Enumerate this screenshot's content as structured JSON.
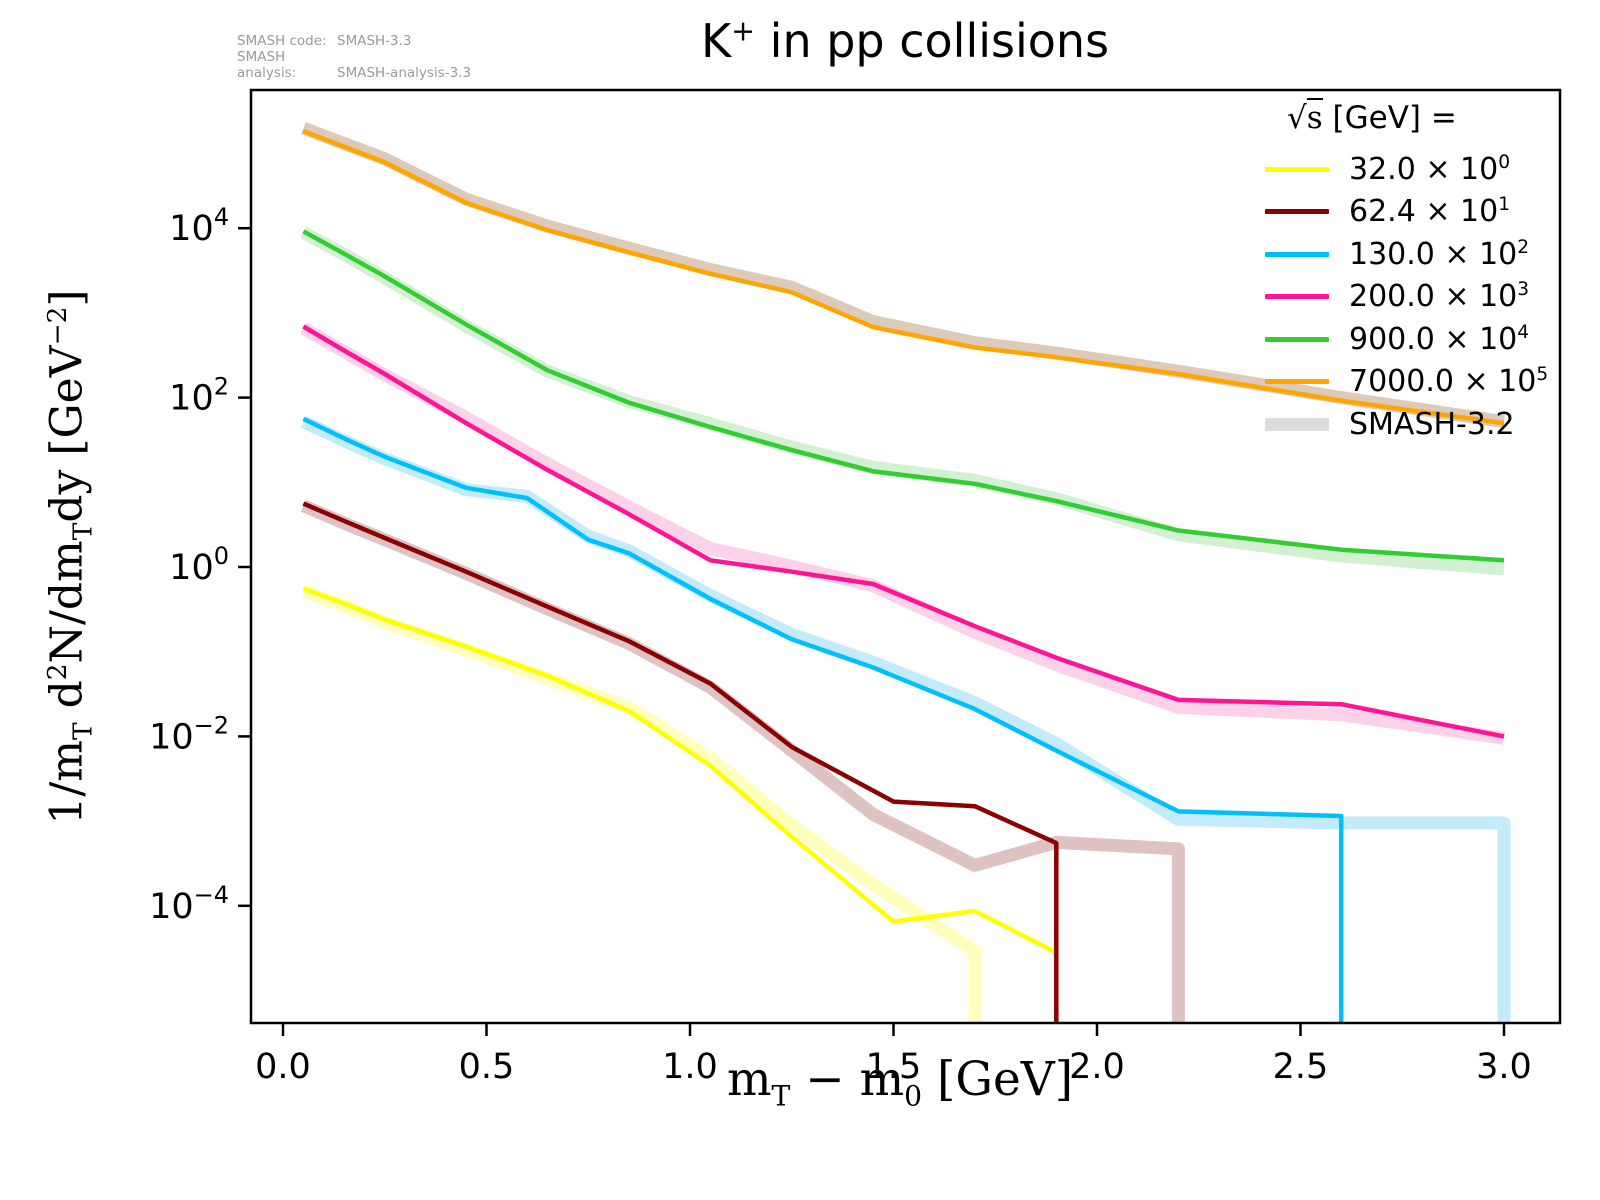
{
  "title": {
    "particle": "K",
    "charge": "+",
    "rest": " in pp collisions"
  },
  "corner": {
    "lines": [
      {
        "label": "SMASH code:",
        "value": "SMASH-3.3"
      },
      {
        "label": "SMASH analysis:",
        "value": "SMASH-analysis-3.3"
      }
    ]
  },
  "axes": {
    "x_label_parts": {
      "p1": "m",
      "s1": "T",
      "p2": " − m",
      "s2": "0",
      "p3": " [GeV]"
    },
    "y_label_parts": {
      "p1": "1/m",
      "s1": "T",
      "p2": " d",
      "sup1": "2",
      "p3": "N/dm",
      "s2": "T",
      "p4": "dy  [GeV",
      "sup2": "−2",
      "p5": "]"
    },
    "x_ticks": [
      {
        "v": 0.0,
        "label": "0.0"
      },
      {
        "v": 0.5,
        "label": "0.5"
      },
      {
        "v": 1.0,
        "label": "1.0"
      },
      {
        "v": 1.5,
        "label": "1.5"
      },
      {
        "v": 2.0,
        "label": "2.0"
      },
      {
        "v": 2.5,
        "label": "2.5"
      },
      {
        "v": 3.0,
        "label": "3.0"
      }
    ],
    "y_ticks": [
      {
        "exp": "4"
      },
      {
        "exp": "2"
      },
      {
        "exp": "0"
      },
      {
        "exp": "−2"
      },
      {
        "exp": "−4"
      }
    ],
    "y_tick_base": "10"
  },
  "legend": {
    "title_sqrt": "√",
    "title_s": "s",
    "title_rest": "  [GeV] =",
    "items": [
      {
        "value": "32.0",
        "exp": "0",
        "color": "#ffff00",
        "thick": false
      },
      {
        "value": "62.4",
        "exp": "1",
        "color": "#8b0000",
        "thick": false
      },
      {
        "value": "130.0",
        "exp": "2",
        "color": "#00bfff",
        "thick": false
      },
      {
        "value": "200.0",
        "exp": "3",
        "color": "#ff1493",
        "thick": false
      },
      {
        "value": "900.0",
        "exp": "4",
        "color": "#32cd32",
        "thick": false
      },
      {
        "value": "7000.0",
        "exp": "5",
        "color": "#ffa500",
        "thick": false
      },
      {
        "label": "SMASH-3.2",
        "color": "#dcdcdc",
        "thick": true
      }
    ]
  },
  "chart_data": {
    "type": "line",
    "title": "K+ in pp collisions",
    "xlabel": "mT − m0 [GeV]",
    "ylabel": "1/mT d2N/dmTdy [GeV−2]",
    "x_range": [
      -0.08,
      3.14
    ],
    "log_y": true,
    "y_tick_exponents": [
      4,
      2,
      0,
      -2,
      -4
    ],
    "legend_position": "upper right",
    "grid": false,
    "note": "Each sqrt(s) curve is scaled by the 10^exp factor shown in the legend. 'band' arrays are the thick pale SMASH-3.2 reference curves, 'line' arrays are the vivid SMASH-3.3 curves. drop=true means the curve falls vertically to zero at its last x.",
    "series": [
      {
        "sqrt_s_gev": 32.0,
        "scale_exp": 0,
        "color": "#ffff00",
        "band_color": "#ffffbe",
        "line": {
          "x": [
            0.05,
            0.15,
            0.25,
            0.45,
            0.65,
            0.85,
            1.05,
            1.25,
            1.5,
            1.7,
            1.9
          ],
          "y": [
            0.56,
            0.37,
            0.24,
            0.115,
            0.052,
            0.02,
            0.0045,
            0.00065,
            6.5e-05,
            8.7e-05,
            2.8e-05
          ],
          "drop": false
        },
        "band": {
          "x": [
            0.05,
            0.15,
            0.25,
            0.45,
            0.65,
            0.85,
            1.05,
            1.25,
            1.45,
            1.7
          ],
          "y": [
            0.52,
            0.35,
            0.22,
            0.105,
            0.048,
            0.022,
            0.0055,
            0.0009,
            0.00018,
            2.9e-05
          ],
          "drop": true
        }
      },
      {
        "sqrt_s_gev": 62.4,
        "scale_exp": 1,
        "color": "#8b0000",
        "band_color": "#dfc3c3",
        "line": {
          "x": [
            0.05,
            0.15,
            0.25,
            0.45,
            0.65,
            0.85,
            1.05,
            1.25,
            1.5,
            1.7,
            1.9
          ],
          "y": [
            5.6,
            3.5,
            2.2,
            0.88,
            0.34,
            0.133,
            0.042,
            0.0075,
            0.0017,
            0.0015,
            0.00055
          ],
          "drop": true
        },
        "band": {
          "x": [
            0.05,
            0.15,
            0.25,
            0.45,
            0.65,
            0.85,
            1.05,
            1.25,
            1.45,
            1.7,
            1.9,
            2.2
          ],
          "y": [
            5.3,
            3.3,
            2.1,
            0.84,
            0.32,
            0.125,
            0.038,
            0.0068,
            0.0012,
            0.0003,
            0.00056,
            0.00047
          ],
          "drop": true
        }
      },
      {
        "sqrt_s_gev": 130.0,
        "scale_exp": 2,
        "color": "#00bfff",
        "band_color": "#c4ebfc",
        "line": {
          "x": [
            0.05,
            0.15,
            0.25,
            0.45,
            0.6,
            0.75,
            0.85,
            1.05,
            1.25,
            1.45,
            1.7,
            1.9,
            2.2,
            2.6
          ],
          "y": [
            56,
            33,
            20,
            8.6,
            6.5,
            2.1,
            1.45,
            0.42,
            0.14,
            0.065,
            0.021,
            0.0068,
            0.0013,
            0.00115
          ],
          "drop": true
        },
        "band": {
          "x": [
            0.05,
            0.15,
            0.25,
            0.45,
            0.6,
            0.75,
            0.85,
            1.05,
            1.25,
            1.45,
            1.7,
            1.9,
            2.2,
            2.6,
            3.0
          ],
          "y": [
            52,
            31,
            19,
            8.2,
            6.8,
            2.3,
            1.55,
            0.46,
            0.16,
            0.075,
            0.025,
            0.0082,
            0.00105,
            0.00095,
            0.00095
          ],
          "drop": true
        }
      },
      {
        "sqrt_s_gev": 200.0,
        "scale_exp": 3,
        "color": "#ff1493",
        "band_color": "#fcd2e8",
        "line": {
          "x": [
            0.05,
            0.15,
            0.25,
            0.45,
            0.65,
            0.85,
            1.05,
            1.25,
            1.45,
            1.7,
            1.9,
            2.2,
            2.6,
            3.0
          ],
          "y": [
            690,
            360,
            190,
            50,
            14,
            4.2,
            1.2,
            0.88,
            0.63,
            0.2,
            0.085,
            0.027,
            0.024,
            0.01
          ],
          "drop": false
        },
        "band": {
          "x": [
            0.05,
            0.15,
            0.25,
            0.45,
            0.65,
            0.85,
            1.05,
            1.25,
            1.45,
            1.7,
            1.9,
            2.2,
            2.6,
            3.0
          ],
          "y": [
            660,
            350,
            185,
            58,
            16.5,
            5.1,
            1.65,
            1.02,
            0.6,
            0.17,
            0.07,
            0.022,
            0.018,
            0.0095
          ],
          "drop": false
        }
      },
      {
        "sqrt_s_gev": 900.0,
        "scale_exp": 4,
        "color": "#32cd32",
        "band_color": "#d3f0d3",
        "line": {
          "x": [
            0.05,
            0.15,
            0.25,
            0.45,
            0.65,
            0.85,
            1.05,
            1.25,
            1.45,
            1.7,
            1.9,
            2.2,
            2.6,
            3.0
          ],
          "y": [
            9200,
            5000,
            2700,
            730,
            210,
            87,
            45,
            24,
            13.5,
            9.6,
            6.0,
            2.7,
            1.6,
            1.2
          ],
          "drop": false
        },
        "band": {
          "x": [
            0.05,
            0.15,
            0.25,
            0.45,
            0.65,
            0.85,
            1.05,
            1.25,
            1.45,
            1.7,
            1.9,
            2.2,
            2.6,
            3.0
          ],
          "y": [
            8900,
            4900,
            2600,
            700,
            205,
            90,
            49,
            26,
            15,
            10.5,
            6.4,
            2.4,
            1.35,
            0.95
          ],
          "drop": false
        }
      },
      {
        "sqrt_s_gev": 7000.0,
        "scale_exp": 5,
        "color": "#ffa500",
        "band_color": "#dccaba",
        "line": {
          "x": [
            0.05,
            0.15,
            0.25,
            0.45,
            0.65,
            0.85,
            1.05,
            1.25,
            1.45,
            1.7,
            1.9,
            2.2,
            2.6,
            3.0
          ],
          "y": [
            140000,
            92000,
            60000,
            20000,
            9500,
            5200,
            2900,
            1750,
            680,
            390,
            300,
            190,
            92,
            50
          ],
          "drop": false
        },
        "band": {
          "x": [
            0.05,
            0.15,
            0.25,
            0.45,
            0.65,
            0.85,
            1.05,
            1.25,
            1.45,
            1.7,
            1.9,
            2.2,
            2.6,
            3.0
          ],
          "y": [
            152000,
            100000,
            66000,
            22000,
            10600,
            5800,
            3250,
            2000,
            790,
            445,
            335,
            205,
            100,
            52
          ],
          "drop": false
        }
      }
    ]
  }
}
